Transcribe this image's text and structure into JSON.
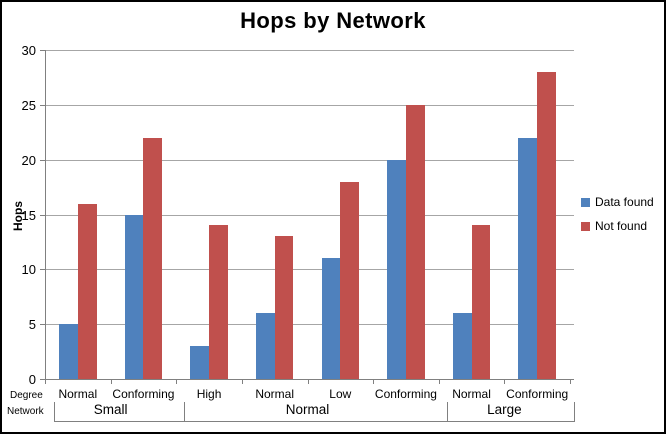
{
  "chart_data": {
    "type": "bar",
    "title": "Hops by Network",
    "ylabel": "Hops",
    "xlabel": "",
    "ylim": [
      0,
      30
    ],
    "yticks": [
      0,
      5,
      10,
      15,
      20,
      25,
      30
    ],
    "grid": true,
    "legend_position": "right",
    "axis_names": {
      "category": "Degree",
      "group": "Network"
    },
    "categories": [
      "Normal",
      "Conforming",
      "High",
      "Normal",
      "Low",
      "Conforming",
      "Normal",
      "Conforming"
    ],
    "groups": [
      {
        "label": "Small",
        "span": 2
      },
      {
        "label": "Normal",
        "span": 4
      },
      {
        "label": "Large",
        "span": 2
      }
    ],
    "series": [
      {
        "name": "Data found",
        "color": "#4F81BD",
        "values": [
          5,
          15,
          3,
          6,
          11,
          20,
          6,
          22
        ]
      },
      {
        "name": "Not found",
        "color": "#C0504D",
        "values": [
          16,
          22,
          14,
          13,
          18,
          25,
          14,
          28
        ]
      }
    ],
    "colors": {
      "gridline": "#A6A6A6",
      "axis": "#808080",
      "text": "#000000",
      "border": "#000000",
      "background": "#FFFFFF"
    }
  }
}
